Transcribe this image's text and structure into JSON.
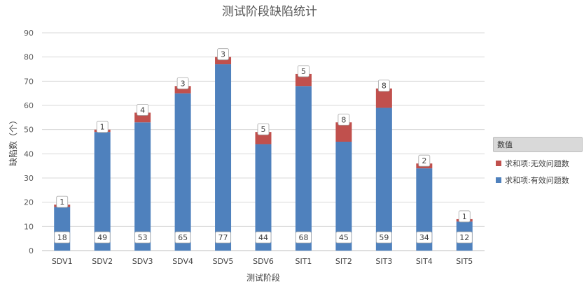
{
  "chart_data": {
    "type": "bar",
    "stacked": true,
    "title": "测试阶段缺陷统计",
    "xlabel": "测试阶段",
    "ylabel": "缺陷数（个）",
    "ylim": [
      0,
      90
    ],
    "yticks": [
      0,
      10,
      20,
      30,
      40,
      50,
      60,
      70,
      80,
      90
    ],
    "grid": true,
    "legend_position": "right",
    "legend_title": "数值",
    "categories": [
      "SDV1",
      "SDV2",
      "SDV3",
      "SDV4",
      "SDV5",
      "SDV6",
      "SIT1",
      "SIT2",
      "SIT3",
      "SIT4",
      "SIT5"
    ],
    "series": [
      {
        "name": "求和项:有效问题数",
        "color": "#4f81bd",
        "values": [
          18,
          49,
          53,
          65,
          77,
          44,
          68,
          45,
          59,
          34,
          12
        ]
      },
      {
        "name": "求和项:无效问题数",
        "color": "#c0504d",
        "values": [
          1,
          1,
          4,
          3,
          3,
          5,
          5,
          8,
          8,
          2,
          1
        ]
      }
    ]
  }
}
